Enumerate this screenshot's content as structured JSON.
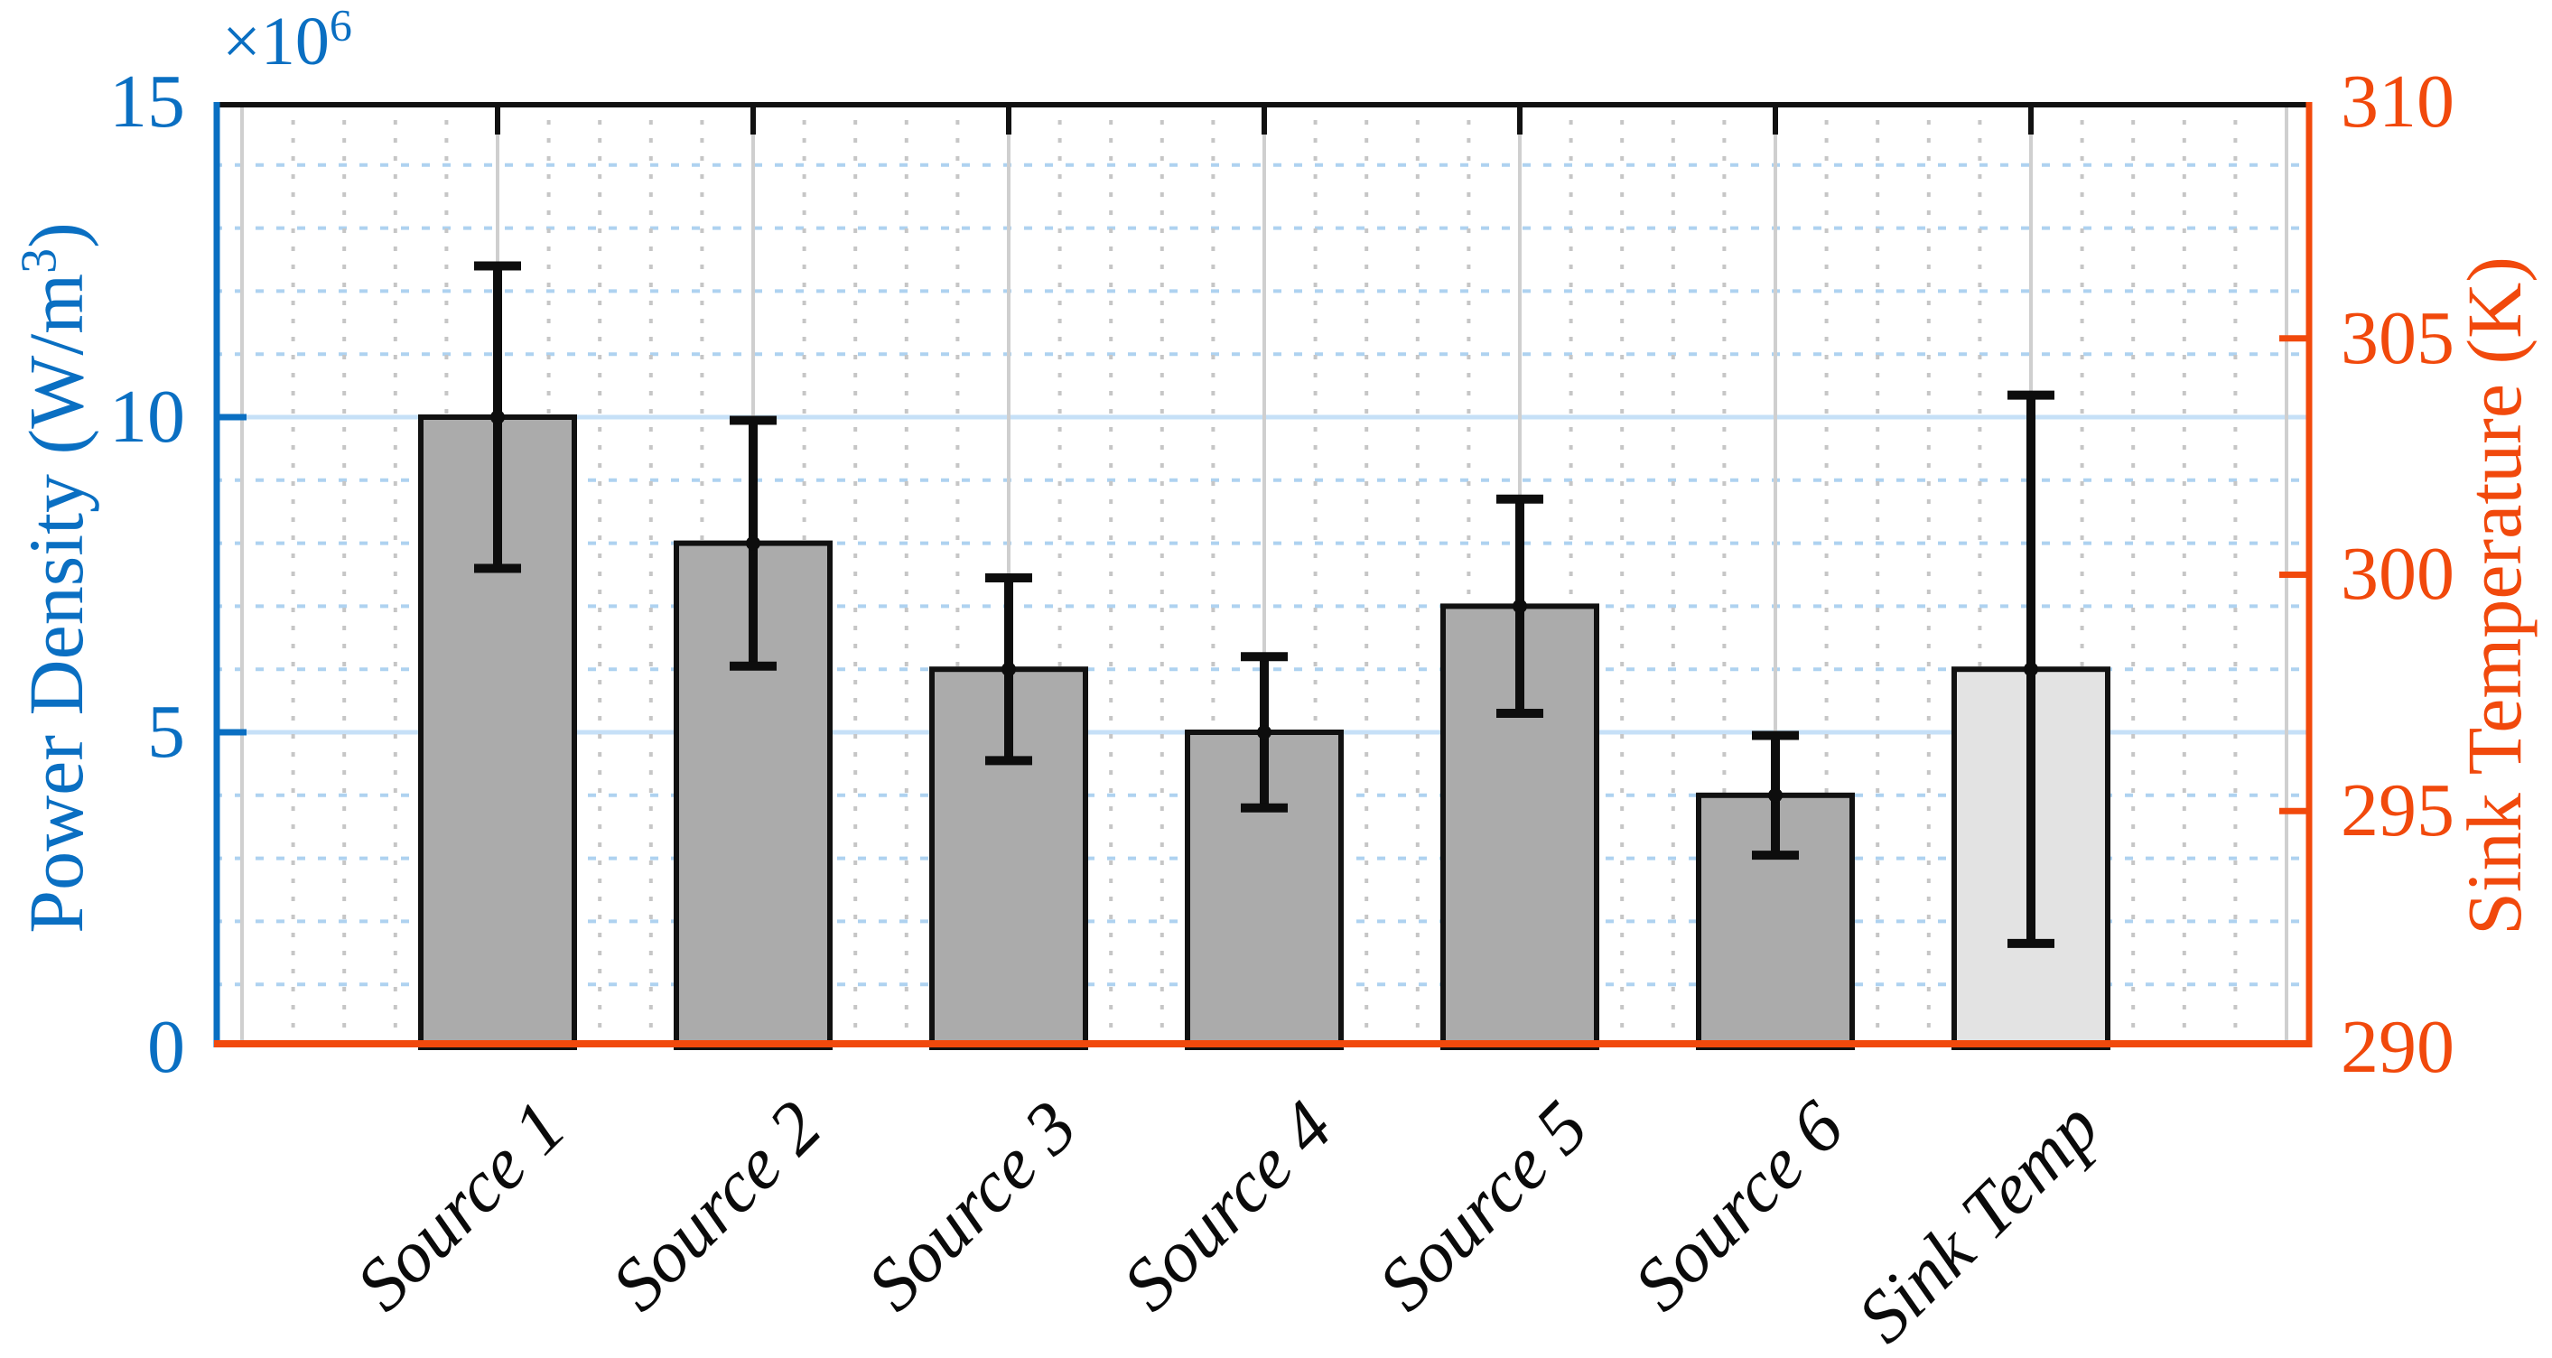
{
  "figure": {
    "background": "#ffffff",
    "type_hint": "dual-axis bar chart with error bars"
  },
  "colors": {
    "blue_axis": "#0a6fc2",
    "orange_axis": "#f1490c",
    "frame_black": "#111111",
    "bar_fill": "#ababab",
    "bar_fill_light": "#e3e3e3",
    "error_bar": "#0d0d0d",
    "grid_blue_major": "#c6e0f7",
    "grid_blue_minor": "#aed2f0",
    "grid_gray_major": "#cfcfcf",
    "grid_gray_minor": "#c6c6c6"
  },
  "chart_data": {
    "type": "bar",
    "title": "",
    "categories": [
      "Source 1",
      "Source 2",
      "Source 3",
      "Source 4",
      "Source 5",
      "Source 6",
      "Sink Temp"
    ],
    "bars": [
      {
        "category": "Source 1",
        "axis": "left",
        "value": 10.0,
        "err_low": 7.6,
        "err_high": 12.4,
        "fill": "gray"
      },
      {
        "category": "Source 2",
        "axis": "left",
        "value": 8.0,
        "err_low": 6.05,
        "err_high": 9.95,
        "fill": "gray"
      },
      {
        "category": "Source 3",
        "axis": "left",
        "value": 6.0,
        "err_low": 4.55,
        "err_high": 7.45,
        "fill": "gray"
      },
      {
        "category": "Source 4",
        "axis": "left",
        "value": 5.0,
        "err_low": 3.8,
        "err_high": 6.2,
        "fill": "gray"
      },
      {
        "category": "Source 5",
        "axis": "left",
        "value": 7.0,
        "err_low": 5.3,
        "err_high": 8.7,
        "fill": "gray"
      },
      {
        "category": "Source 6",
        "axis": "left",
        "value": 4.0,
        "err_low": 3.05,
        "err_high": 4.95,
        "fill": "gray"
      },
      {
        "category": "Sink Temp",
        "axis": "right",
        "value": 298.0,
        "err_low": 292.2,
        "err_high": 303.8,
        "fill": "light"
      }
    ],
    "left_axis": {
      "label": "Power Density  (W/m",
      "label_sup": "3",
      "label_close": ")",
      "multiplier_base": "×10",
      "multiplier_exp": "6",
      "unit_scale": "1e6",
      "range": [
        0,
        15
      ],
      "ticks": [
        0,
        5,
        10,
        15
      ],
      "tick_labels": [
        "15",
        "10",
        "5",
        "0"
      ],
      "minor_step": 1,
      "color": "#0a6fc2"
    },
    "right_axis": {
      "label": "Sink Temperature (K)",
      "range": [
        290,
        310
      ],
      "ticks": [
        290,
        295,
        300,
        305,
        310
      ],
      "tick_labels": [
        "310",
        "305",
        "300",
        "295",
        "290"
      ],
      "color": "#f1490c"
    },
    "x_axis": {
      "tick_angle_deg": -45,
      "minor_divisions_per_category": 5,
      "grid": "major solid gray at category centers, dotted gray minors"
    },
    "grid": {
      "y_major_values": [
        5,
        10
      ],
      "y_minor_every": 1,
      "style": "major solid light blue, minor dashed light blue"
    },
    "legend": "none"
  }
}
